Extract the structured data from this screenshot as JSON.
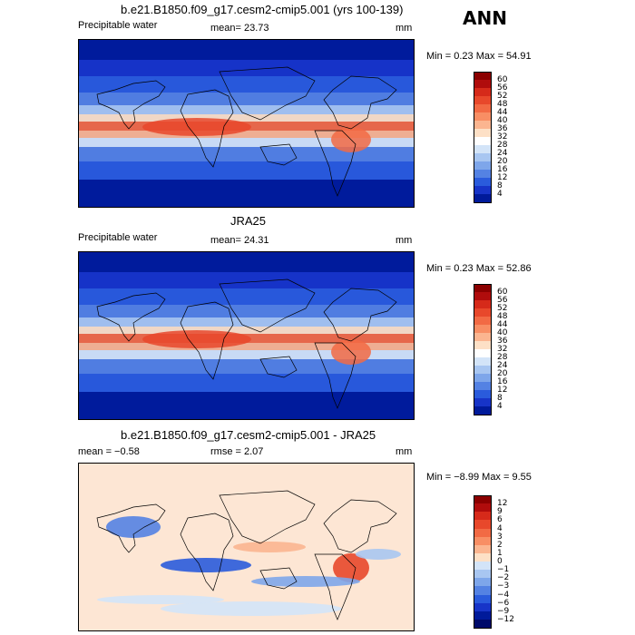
{
  "season": "ANN",
  "panels": [
    {
      "title": "b.e21.B1850.f09_g17.cesm2-cmip5.001 (yrs 100-139)",
      "left_label": "Precipitable water",
      "mid_label": "mean=  23.73",
      "units": "mm",
      "minmax": "Min =    0.23  Max =   54.91",
      "scale": "abs",
      "kind": "model"
    },
    {
      "title": "JRA25",
      "left_label": "Precipitable water",
      "mid_label": "mean=  24.31",
      "units": "mm",
      "minmax": "Min =    0.23  Max =   52.86",
      "scale": "abs",
      "kind": "obs"
    },
    {
      "title": "b.e21.B1850.f09_g17.cesm2-cmip5.001 - JRA25",
      "left_label": "mean =  −0.58",
      "mid_label": "rmse =    2.07",
      "units": "mm",
      "minmax": "Min =  −8.99  Max =    9.55",
      "scale": "diff",
      "kind": "diff"
    }
  ],
  "colorbars": {
    "abs": {
      "labels": [
        "60",
        "56",
        "52",
        "48",
        "44",
        "40",
        "36",
        "32",
        "28",
        "24",
        "20",
        "16",
        "12",
        "8",
        "4"
      ],
      "colors": [
        "#8b0000",
        "#b00c0c",
        "#d62a1a",
        "#e8482b",
        "#f26a44",
        "#f88e64",
        "#fbb590",
        "#fde0c6",
        "#ffffff",
        "#d3e4f8",
        "#a8c6f1",
        "#7ea6ea",
        "#5482e3",
        "#2a5bdc",
        "#1734c8",
        "#001a9a"
      ]
    },
    "diff": {
      "labels": [
        "12",
        "9",
        "6",
        "4",
        "3",
        "2",
        "1",
        "0",
        "−1",
        "−2",
        "−3",
        "−4",
        "−6",
        "−9",
        "−12"
      ],
      "colors": [
        "#8b0000",
        "#b00c0c",
        "#d62a1a",
        "#e8482b",
        "#f26a44",
        "#f88e64",
        "#fbb590",
        "#fde0c6",
        "#d3e4f8",
        "#a8c6f1",
        "#7ea6ea",
        "#5482e3",
        "#2a5bdc",
        "#1734c8",
        "#001a9a",
        "#000a6a"
      ]
    }
  },
  "colors": {
    "abs_bg": "#1030b8",
    "diff_bg": "#fde6d4"
  }
}
